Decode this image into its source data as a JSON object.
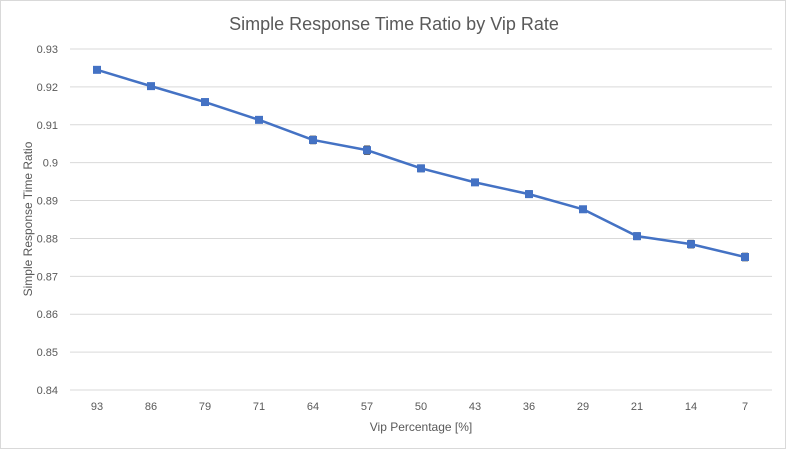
{
  "chart_data": {
    "type": "line",
    "title": "Simple Response Time Ratio by Vip Rate",
    "xlabel": "Vip Percentage [%]",
    "ylabel": "Simple Response Time Ratio",
    "categories": [
      "93",
      "86",
      "79",
      "71",
      "64",
      "57",
      "50",
      "43",
      "36",
      "29",
      "21",
      "14",
      "7"
    ],
    "series": [
      {
        "values": [
          0.9245,
          0.9202,
          0.916,
          0.9113,
          0.906,
          0.9033,
          0.8985,
          0.8948,
          0.8917,
          0.8877,
          0.8806,
          0.8785,
          0.8751
        ],
        "error": [
          0.0005,
          0.0005,
          0.0006,
          0.0008,
          0.001,
          0.0011,
          0.0009,
          0.0006,
          0.0009,
          0.0008,
          0.0009,
          0.001,
          0.001
        ],
        "color": "#4472c4"
      }
    ],
    "ylim": [
      0.84,
      0.93
    ],
    "yticks": [
      "0.84",
      "0.85",
      "0.86",
      "0.87",
      "0.88",
      "0.89",
      "0.9",
      "0.91",
      "0.92",
      "0.93"
    ],
    "grid": true,
    "legend": "none",
    "colors": {
      "line": "#4472c4",
      "grid": "#d9d9d9",
      "text": "#595959"
    }
  }
}
